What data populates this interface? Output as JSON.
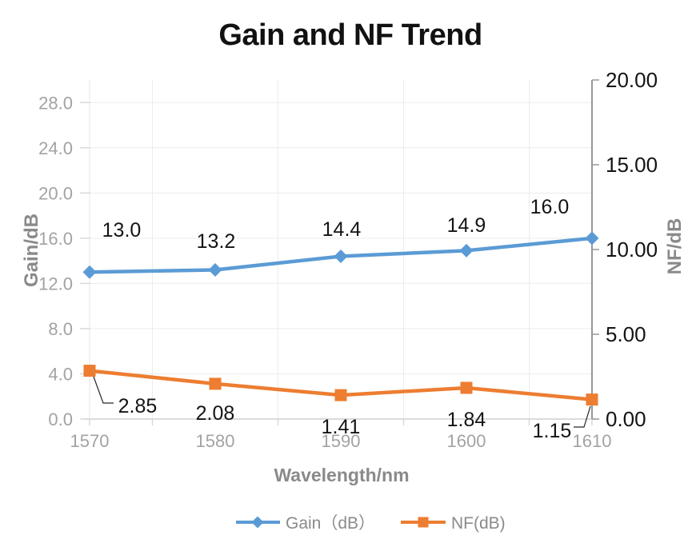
{
  "chart_data": {
    "type": "line",
    "title": "Gain and NF Trend",
    "xlabel": "Wavelength/nm",
    "categories": [
      "1570",
      "1580",
      "1590",
      "1600",
      "1610"
    ],
    "series": [
      {
        "name": "Gain（dB）",
        "axis": "left",
        "color": "#5B9BD5",
        "marker": "diamond",
        "values": [
          13.0,
          13.2,
          14.4,
          14.9,
          16.0
        ],
        "labels": [
          "13.0",
          "13.2",
          "14.4",
          "14.9",
          "16.0"
        ]
      },
      {
        "name": "NF(dB)",
        "axis": "right",
        "color": "#ED7D31",
        "marker": "square",
        "values": [
          2.85,
          2.08,
          1.41,
          1.84,
          1.15
        ],
        "labels": [
          "2.85",
          "2.08",
          "1.41",
          "1.84",
          "1.15"
        ]
      }
    ],
    "left_axis": {
      "label": "Gain/dB",
      "min": 0,
      "max": 30,
      "tick_step": 4,
      "tick_labels": [
        "0.0",
        "4.0",
        "8.0",
        "12.0",
        "16.0",
        "20.0",
        "24.0",
        "28.0"
      ]
    },
    "right_axis": {
      "label": "NF/dB",
      "min": 0,
      "max": 20,
      "tick_step": 5,
      "tick_labels": [
        "0.00",
        "5.00",
        "10.00",
        "15.00",
        "20.00"
      ]
    },
    "legend": {
      "position": "bottom",
      "entries": [
        "Gain（dB）",
        "NF(dB)"
      ]
    },
    "grid": {
      "horizontal": true,
      "vertical": true
    },
    "colors": {
      "gain_series": "#5B9BD5",
      "nf_series": "#ED7D31",
      "gridline": "#ececec",
      "axis_line_light": "#cfcfcf",
      "axis_line_dark": "#767676",
      "muted_text": "#a3a3a3",
      "axis_title_text": "#8a8a8a",
      "label_text": "#141414"
    }
  }
}
